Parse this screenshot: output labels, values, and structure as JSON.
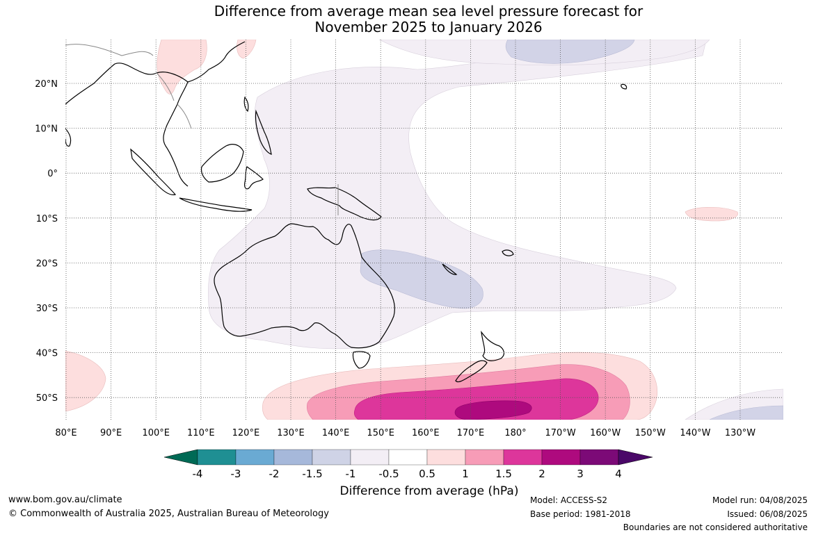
{
  "title": {
    "line1": "Difference from average mean sea level pressure forecast for",
    "line2": "November 2025 to January 2026"
  },
  "map": {
    "lon_labels": [
      "80°E",
      "90°E",
      "100°E",
      "110°E",
      "120°E",
      "130°E",
      "140°E",
      "150°E",
      "160°E",
      "170°E",
      "180°",
      "170°W",
      "160°W",
      "150°W",
      "140°W",
      "130°W"
    ],
    "lat_labels": [
      "20°N",
      "10°N",
      "0°",
      "10°S",
      "20°S",
      "30°S",
      "40°S",
      "50°S"
    ]
  },
  "colorbar": {
    "ticks": [
      "-4",
      "-3",
      "-2",
      "-1.5",
      "-1",
      "-0.5",
      "0.5",
      "1",
      "1.5",
      "2",
      "3",
      "4"
    ],
    "colors": [
      "#006a55",
      "#1f8f93",
      "#6aaad3",
      "#a6b8da",
      "#cfd3e6",
      "#f3eef5",
      "#ffffff",
      "#fddede",
      "#f79cb7",
      "#dd369b",
      "#ae0a7e",
      "#7c0a77",
      "#4a0868"
    ],
    "label": "Difference from average (hPa)"
  },
  "footer": {
    "website": "www.bom.gov.au/climate",
    "copyright": "© Commonwealth of Australia 2025, Australian Bureau of Meteorology",
    "model": "Model: ACCESS-S2",
    "base_period": "Base period: 1981-2018",
    "model_run": "Model run: 04/08/2025",
    "issued": "Issued: 06/08/2025",
    "boundaries": "Boundaries are not considered authoritative"
  }
}
